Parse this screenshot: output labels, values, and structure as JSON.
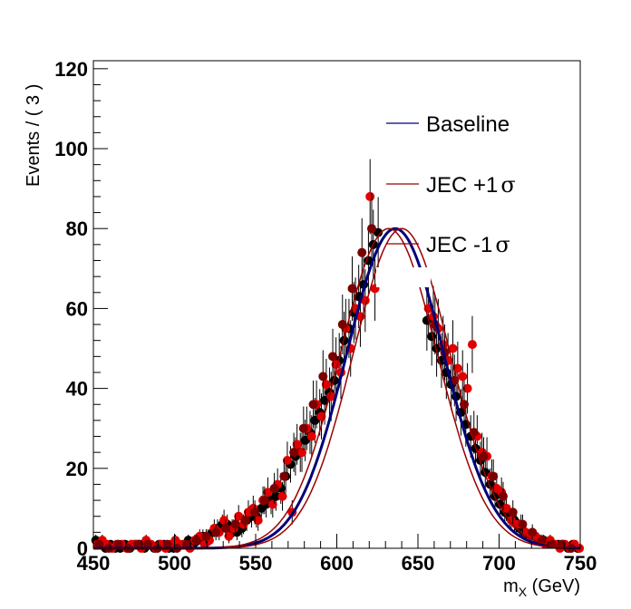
{
  "chart_data": {
    "type": "scatter",
    "xlabel": "m",
    "xlabel_sub": "X",
    "xlabel_unit": "(GeV)",
    "ylabel": "Events / ( 3 )",
    "xlim": [
      450,
      750
    ],
    "ylim": [
      0,
      122
    ],
    "x_ticks": [
      450,
      500,
      550,
      600,
      650,
      700,
      750
    ],
    "y_ticks": [
      0,
      20,
      40,
      60,
      80,
      100,
      120
    ],
    "legend": {
      "placement": "top-right",
      "entries": [
        {
          "label": "Baseline",
          "color": "#00007a"
        },
        {
          "label": "JEC +1",
          "symbol": "σ",
          "color": "#990000"
        },
        {
          "label": "JEC -1",
          "symbol": "σ",
          "color": "#990000"
        }
      ]
    },
    "series": [
      {
        "color": "#000000",
        "x": [
          451.5,
          454.5,
          457.5,
          460.5,
          463.5,
          466.5,
          469.5,
          472.5,
          475.5,
          478.5,
          481.5,
          484.5,
          487.5,
          490.5,
          493.5,
          496.5,
          499.5,
          502.5,
          505.5,
          508.5,
          511.5,
          514.5,
          517.5,
          520.5,
          523.5,
          526.5,
          529.5,
          532.5,
          535.5,
          538.5,
          541.5,
          544.5,
          547.5,
          550.5,
          553.5,
          556.5,
          559.5,
          562.5,
          565.5,
          568.5,
          571.5,
          574.5,
          577.5,
          580.5,
          583.5,
          586.5,
          589.5,
          592.5,
          595.5,
          598.5,
          601.5,
          604.5,
          607.5,
          610.5,
          613.5,
          616.5,
          619.5,
          622.5,
          625.5,
          655.5,
          658.5,
          661.5,
          664.5,
          667.5,
          670.5,
          673.5,
          676.5,
          679.5,
          682.5,
          685.5,
          688.5,
          691.5,
          694.5,
          697.5,
          700.5,
          703.5,
          706.5,
          709.5,
          712.5,
          715.5,
          718.5,
          721.5,
          724.5,
          727.5,
          730.5,
          733.5,
          736.5,
          739.5,
          742.5,
          745.5,
          748.5
        ],
        "values": [
          2,
          1,
          0,
          1,
          0,
          0,
          1,
          0,
          1,
          1,
          0,
          1,
          0,
          1,
          1,
          0,
          0,
          1,
          1,
          2,
          1,
          2,
          3,
          3,
          4,
          5,
          6,
          6,
          5,
          4,
          5,
          7,
          8,
          8,
          10,
          11,
          12,
          13,
          15,
          18,
          21,
          23,
          24,
          27,
          29,
          32,
          34,
          37,
          39,
          42,
          47,
          52,
          55,
          59,
          63,
          66,
          72,
          76,
          79,
          57,
          53,
          50,
          47,
          44,
          41,
          38,
          34,
          31,
          28,
          25,
          22,
          19,
          16,
          13,
          11,
          9,
          8,
          7,
          5,
          4,
          3,
          3,
          2,
          2,
          1,
          1,
          1,
          1,
          0,
          1,
          0
        ]
      },
      {
        "color": "#e00000",
        "x": [
          452.5,
          455.5,
          458.5,
          461.5,
          464.5,
          467.5,
          470.5,
          473.5,
          476.5,
          479.5,
          482.5,
          485.5,
          488.5,
          491.5,
          494.5,
          497.5,
          500.5,
          503.5,
          506.5,
          509.5,
          512.5,
          515.5,
          518.5,
          521.5,
          524.5,
          527.5,
          530.5,
          533.5,
          536.5,
          539.5,
          542.5,
          545.5,
          548.5,
          551.5,
          554.5,
          557.5,
          560.5,
          563.5,
          566.5,
          569.5,
          572.5,
          575.5,
          578.5,
          581.5,
          584.5,
          587.5,
          590.5,
          593.5,
          596.5,
          599.5,
          602.5,
          605.5,
          608.5,
          611.5,
          614.5,
          617.5,
          620.5,
          623.5,
          656.5,
          659.5,
          662.5,
          665.5,
          668.5,
          671.5,
          674.5,
          677.5,
          680.5,
          683.5,
          686.5,
          689.5,
          692.5,
          695.5,
          698.5,
          701.5,
          704.5,
          707.5,
          710.5,
          713.5,
          716.5,
          719.5,
          722.5,
          725.5,
          728.5,
          731.5,
          734.5,
          737.5,
          740.5,
          743.5,
          746.5,
          749.5
        ],
        "values": [
          1,
          2,
          1,
          0,
          1,
          1,
          0,
          1,
          1,
          0,
          2,
          1,
          0,
          1,
          0,
          1,
          2,
          1,
          1,
          0,
          2,
          3,
          1,
          2,
          5,
          4,
          7,
          3,
          5,
          8,
          6,
          9,
          10,
          7,
          12,
          14,
          11,
          16,
          13,
          22,
          9,
          26,
          24,
          30,
          28,
          36,
          33,
          41,
          38,
          46,
          44,
          55,
          50,
          60,
          58,
          62,
          88,
          65,
          60,
          58,
          55,
          51,
          47,
          50,
          45,
          43,
          40,
          51,
          28,
          24,
          23,
          18,
          15,
          14,
          10,
          7,
          6,
          6,
          4,
          3,
          3,
          2,
          1,
          2,
          1,
          0,
          1,
          0,
          1,
          0
        ]
      },
      {
        "color": "#7a0000",
        "x": [
          453.5,
          459.5,
          465.5,
          471.5,
          477.5,
          483.5,
          489.5,
          495.5,
          501.5,
          507.5,
          513.5,
          519.5,
          525.5,
          531.5,
          537.5,
          543.5,
          549.5,
          555.5,
          561.5,
          567.5,
          573.5,
          579.5,
          585.5,
          591.5,
          597.5,
          603.5,
          609.5,
          615.5,
          621.5,
          660.5,
          666.5,
          672.5,
          678.5,
          684.5,
          690.5,
          696.5,
          702.5,
          708.5,
          714.5,
          720.5,
          726.5,
          732.5,
          738.5,
          744.5
        ],
        "values": [
          1,
          0,
          1,
          0,
          1,
          1,
          0,
          1,
          0,
          1,
          2,
          3,
          4,
          5,
          6,
          7,
          9,
          12,
          15,
          18,
          24,
          30,
          36,
          43,
          48,
          56,
          65,
          74,
          80,
          56,
          49,
          42,
          36,
          29,
          23,
          18,
          13,
          9,
          6,
          4,
          2,
          1,
          1,
          0
        ]
      }
    ],
    "curves": [
      {
        "name": "Baseline",
        "color": "#00007a",
        "mean": 636,
        "sigma": 30,
        "peak": 80
      },
      {
        "name": "JEC +1 σ",
        "color": "#990000",
        "mean": 640,
        "sigma": 30,
        "peak": 80
      },
      {
        "name": "JEC -1 σ",
        "color": "#990000",
        "mean": 632,
        "sigma": 30,
        "peak": 80
      }
    ]
  }
}
